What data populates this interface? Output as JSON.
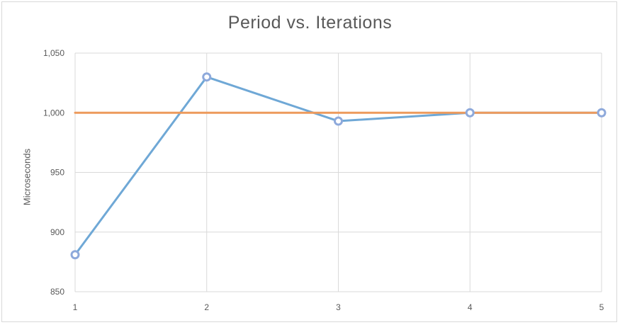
{
  "chart_data": {
    "type": "line",
    "title": "Period vs. Iterations",
    "xlabel": "",
    "ylabel": "Microseconds",
    "x": [
      1,
      2,
      3,
      4,
      5
    ],
    "x_tick_labels": [
      "1",
      "2",
      "3",
      "4",
      "5"
    ],
    "ylim": [
      850,
      1050
    ],
    "y_ticks": [
      850,
      900,
      950,
      1000,
      1050
    ],
    "y_tick_labels": [
      "850",
      "900",
      "950",
      "1,000",
      "1,050"
    ],
    "grid": true,
    "legend": "none",
    "series": [
      {
        "values": [
          881,
          1030,
          993,
          1000,
          1000
        ],
        "color": "#6fa8d6",
        "markers": true
      },
      {
        "values": [
          1000,
          1000,
          1000,
          1000,
          1000
        ],
        "color": "#ed9a5c",
        "markers": false
      }
    ],
    "colors": {
      "grid": "#d9d9d9",
      "marker_fill": "#ffffff",
      "marker_stroke": "#8ea9db"
    }
  }
}
